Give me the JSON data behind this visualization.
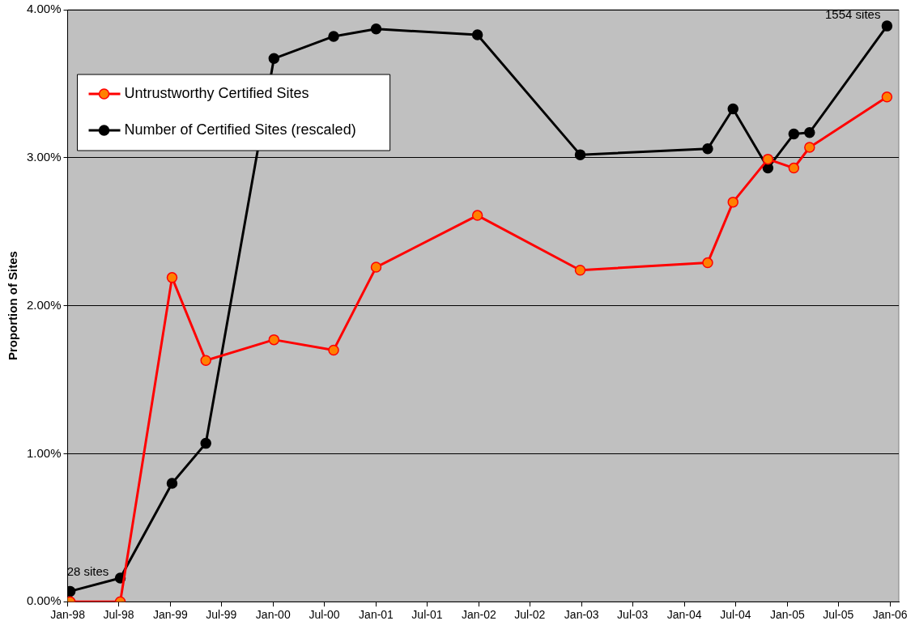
{
  "chart_data": {
    "type": "line",
    "ylabel": "Proportion of Sites",
    "x": [
      "1998-01-10",
      "1998-07-07",
      "1999-01-07",
      "1999-05-07",
      "2000-01-04",
      "2000-08-03",
      "2001-01-01",
      "2001-12-27",
      "2002-12-27",
      "2004-03-24",
      "2004-06-22",
      "2004-10-24",
      "2005-01-24",
      "2005-03-21",
      "2005-12-21"
    ],
    "series": [
      {
        "name": "Untrustworthy Certified Sites",
        "color": "#ff0000",
        "values": [
          0,
          0,
          2.19,
          1.63,
          1.77,
          1.7,
          2.26,
          2.61,
          2.24,
          2.29,
          2.7,
          2.99,
          2.93,
          3.07,
          3.41
        ]
      },
      {
        "name": "Number of Certified Sites (rescaled)",
        "color": "#000000",
        "values": [
          0.07,
          0.16,
          0.8,
          1.07,
          3.67,
          3.82,
          3.87,
          3.83,
          3.02,
          3.06,
          3.33,
          2.93,
          3.16,
          3.17,
          3.89
        ]
      }
    ],
    "xlim": [
      "1998-01-01",
      "2006-02-01"
    ],
    "xticks": [
      {
        "value": "1998-01-01",
        "label": "Jan-98"
      },
      {
        "value": "1998-07-01",
        "label": "Jul-98"
      },
      {
        "value": "1999-01-01",
        "label": "Jan-99"
      },
      {
        "value": "1999-07-01",
        "label": "Jul-99"
      },
      {
        "value": "2000-01-01",
        "label": "Jan-00"
      },
      {
        "value": "2000-07-01",
        "label": "Jul-00"
      },
      {
        "value": "2001-01-01",
        "label": "Jan-01"
      },
      {
        "value": "2001-07-01",
        "label": "Jul-01"
      },
      {
        "value": "2002-01-01",
        "label": "Jan-02"
      },
      {
        "value": "2002-07-01",
        "label": "Jul-02"
      },
      {
        "value": "2003-01-01",
        "label": "Jan-03"
      },
      {
        "value": "2003-07-01",
        "label": "Jul-03"
      },
      {
        "value": "2004-01-01",
        "label": "Jan-04"
      },
      {
        "value": "2004-07-01",
        "label": "Jul-04"
      },
      {
        "value": "2005-01-01",
        "label": "Jan-05"
      },
      {
        "value": "2005-07-01",
        "label": "Jul-05"
      },
      {
        "value": "2006-01-01",
        "label": "Jan-06"
      }
    ],
    "ylim": [
      0,
      4
    ],
    "yticks": [
      {
        "value": 0,
        "label": "0.00%"
      },
      {
        "value": 1,
        "label": "1.00%"
      },
      {
        "value": 2,
        "label": "2.00%"
      },
      {
        "value": 3,
        "label": "3.00%"
      },
      {
        "value": 4,
        "label": "4.00%"
      }
    ],
    "annotations": [
      {
        "text": "28 sites",
        "x": "1998-01-10",
        "y": 0.07
      },
      {
        "text": "1554 sites",
        "x": "2005-12-21",
        "y": 3.89
      }
    ],
    "grid": "y",
    "legend": "top left",
    "marker": "circle",
    "line_style": "solid"
  }
}
